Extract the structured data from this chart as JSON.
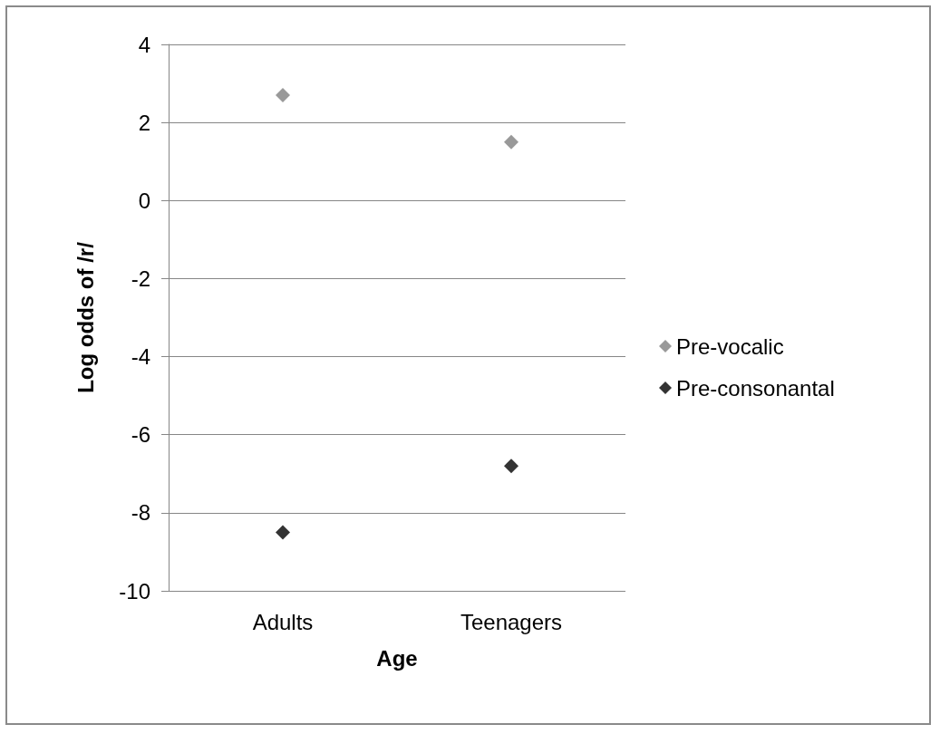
{
  "chart_data": {
    "type": "scatter",
    "xlabel": "Age",
    "ylabel": "Log odds of /r/",
    "categories": [
      "Adults",
      "Teenagers"
    ],
    "series": [
      {
        "name": "Pre-vocalic",
        "color": "#808080",
        "values": [
          2.7,
          1.5
        ]
      },
      {
        "name": "Pre-consonantal",
        "color": "#000000",
        "values": [
          -8.5,
          -6.8
        ]
      }
    ],
    "ylim": [
      -10,
      4
    ],
    "yticks": [
      -10,
      -8,
      -6,
      -4,
      -2,
      0,
      2,
      4
    ],
    "grid": "y",
    "legend": "right",
    "marker": "diamond"
  }
}
